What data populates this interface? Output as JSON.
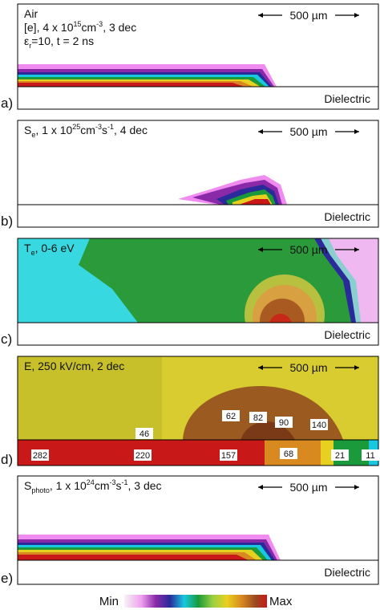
{
  "panels": [
    {
      "label": "a)",
      "title_lines": [
        [
          {
            "text": "Air"
          }
        ],
        [
          {
            "text": "[e], 4 x 10"
          },
          {
            "text": "15",
            "pos": "sup"
          },
          {
            "text": "cm"
          },
          {
            "text": "-3",
            "pos": "sup"
          },
          {
            "text": ", 3 dec"
          }
        ],
        [
          {
            "text": "ε"
          },
          {
            "text": "r",
            "pos": "sub"
          },
          {
            "text": "=10, t = 2 ns"
          }
        ]
      ],
      "scale": "500 µm",
      "region": "Dielectric"
    },
    {
      "label": "b)",
      "title_lines": [
        [
          {
            "text": "S"
          },
          {
            "text": "e",
            "pos": "sub"
          },
          {
            "text": ", 1 x 10"
          },
          {
            "text": "25",
            "pos": "sup"
          },
          {
            "text": "cm"
          },
          {
            "text": "-3",
            "pos": "sup"
          },
          {
            "text": "s"
          },
          {
            "text": "-1",
            "pos": "sup"
          },
          {
            "text": ", 4 dec"
          }
        ]
      ],
      "scale": "500 µm",
      "region": "Dielectric"
    },
    {
      "label": "c)",
      "title_lines": [
        [
          {
            "text": "T"
          },
          {
            "text": "e",
            "pos": "sub"
          },
          {
            "text": ", 0-6 eV"
          }
        ]
      ],
      "scale": "500 µm",
      "region": "Dielectric"
    },
    {
      "label": "d)",
      "title_lines": [
        [
          {
            "text": "E, 250 kV/cm, 2 dec"
          }
        ]
      ],
      "scale": "500 µm",
      "values": [
        46,
        62,
        82,
        90,
        140,
        282,
        220,
        157,
        68,
        21,
        11
      ]
    },
    {
      "label": "e)",
      "title_lines": [
        [
          {
            "text": "S"
          },
          {
            "text": "photo",
            "pos": "sub"
          },
          {
            "text": ", 1 x 10"
          },
          {
            "text": "24",
            "pos": "sup"
          },
          {
            "text": "cm"
          },
          {
            "text": "-3",
            "pos": "sup"
          },
          {
            "text": "s"
          },
          {
            "text": "-1",
            "pos": "sup"
          },
          {
            "text": ", 3 dec"
          }
        ]
      ],
      "scale": "500 µm",
      "region": "Dielectric"
    }
  ],
  "colorbar": {
    "min": "Min",
    "max": "Max"
  }
}
